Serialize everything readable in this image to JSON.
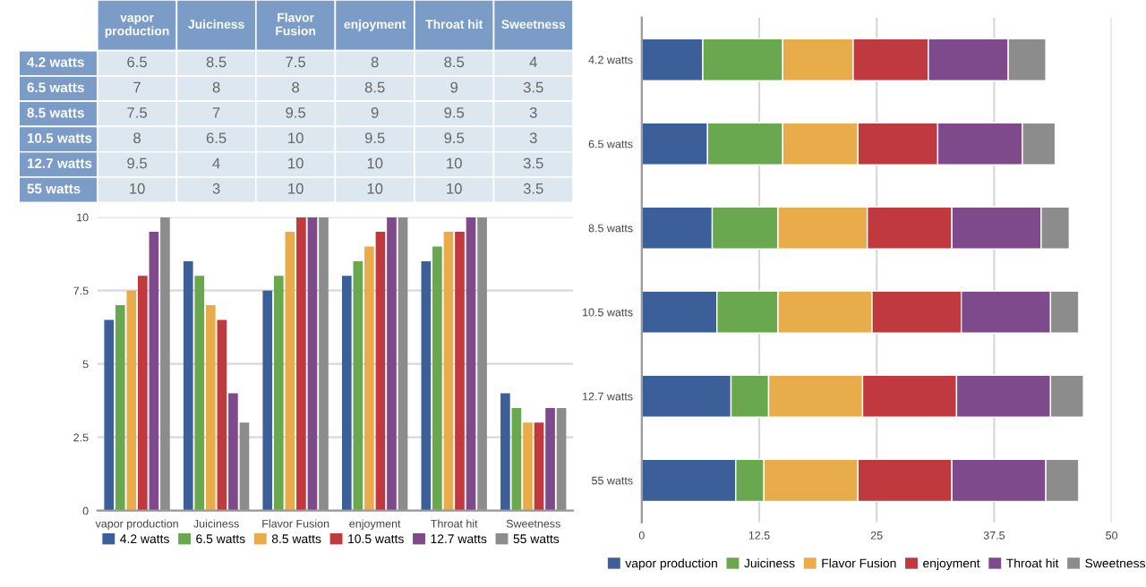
{
  "chart_data": [
    {
      "type": "bar",
      "categories": [
        "vapor production",
        "Juiciness",
        "Flavor Fusion",
        "enjoyment",
        "Throat hit",
        "Sweetness"
      ],
      "series": [
        {
          "name": "4.2 watts",
          "color": "#3d5f99",
          "values": [
            6.5,
            8.5,
            7.5,
            8,
            8.5,
            4
          ]
        },
        {
          "name": "6.5 watts",
          "color": "#6aa84f",
          "values": [
            7,
            8,
            8,
            8.5,
            9,
            3.5
          ]
        },
        {
          "name": "8.5 watts",
          "color": "#e8ad4a",
          "values": [
            7.5,
            7,
            9.5,
            9,
            9.5,
            3
          ]
        },
        {
          "name": "10.5 watts",
          "color": "#c0393f",
          "values": [
            8,
            6.5,
            10,
            9.5,
            9.5,
            3
          ]
        },
        {
          "name": "12.7 watts",
          "color": "#7e4a8c",
          "values": [
            9.5,
            4,
            10,
            10,
            10,
            3.5
          ]
        },
        {
          "name": "55 watts",
          "color": "#8c8c8c",
          "values": [
            10,
            3,
            10,
            10,
            10,
            3.5
          ]
        }
      ],
      "ylim": [
        0,
        10
      ],
      "yticks": [
        0,
        2.5,
        5,
        7.5,
        10
      ],
      "grid": "y",
      "legend": "bottom",
      "data_labels": true
    },
    {
      "type": "bar",
      "orientation": "horizontal",
      "stacked": true,
      "categories": [
        "4.2 watts",
        "6.5 watts",
        "8.5 watts",
        "10.5 watts",
        "12.7 watts",
        "55 watts"
      ],
      "series": [
        {
          "name": "vapor production",
          "color": "#3d5f99",
          "values": [
            6.5,
            7,
            7.5,
            8,
            9.5,
            10
          ]
        },
        {
          "name": "Juiciness",
          "color": "#6aa84f",
          "values": [
            8.5,
            8,
            7,
            6.5,
            4,
            3
          ]
        },
        {
          "name": "Flavor Fusion",
          "color": "#e8ad4a",
          "values": [
            7.5,
            8,
            9.5,
            10,
            10,
            10
          ]
        },
        {
          "name": "enjoyment",
          "color": "#c0393f",
          "values": [
            8,
            8.5,
            9,
            9.5,
            10,
            10
          ]
        },
        {
          "name": "Throat hit",
          "color": "#7e4a8c",
          "values": [
            8.5,
            9,
            9.5,
            9.5,
            10,
            10
          ]
        },
        {
          "name": "Sweetness",
          "color": "#8c8c8c",
          "values": [
            4,
            3.5,
            3,
            3,
            3.5,
            3.5
          ]
        }
      ],
      "xlim": [
        0,
        50
      ],
      "xticks": [
        0,
        12.5,
        25,
        37.5,
        50
      ],
      "grid": "x",
      "legend": "bottom"
    }
  ]
}
